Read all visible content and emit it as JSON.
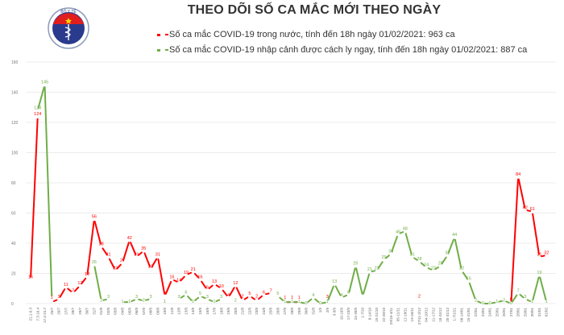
{
  "header": {
    "title": "THEO DÕI SỐ CA MẮC MỚI THEO NGÀY",
    "logo_text": "BỘ Y TẾ",
    "logo_subtext": "MINISTRY OF HEALTH"
  },
  "legend": [
    {
      "label": "Số ca mắc COVID-19 trong nước, tính đến 18h ngày 01/02/2021: 963 ca",
      "color": "#ff0000"
    },
    {
      "label": "Số ca mắc COVID-19 nhập cảnh được cách ly ngay, tính đến 18h ngày 01/02/2021: 887 ca",
      "color": "#70ad47"
    }
  ],
  "chart_data": {
    "type": "line",
    "title": "THEO DÕI SỐ CA MẮC MỚI THEO NGÀY",
    "xlabel": "",
    "ylabel": "",
    "ylim": [
      0,
      160
    ],
    "yticks": [
      0,
      20,
      40,
      60,
      80,
      100,
      120,
      140,
      160
    ],
    "grid": true,
    "legend_position": "top",
    "categories": [
      "21.1-6.3",
      "7.3-16.4",
      "17.4-24.7",
      "25/7",
      "26/7",
      "27/7",
      "28/7",
      "29/7",
      "30/7",
      "31/7",
      "01/8",
      "02/8",
      "03/8",
      "04/8",
      "05/8",
      "06/8",
      "07/8",
      "08/8",
      "09/8",
      "10/8",
      "11/8",
      "12/8",
      "13/8",
      "14/8",
      "15/8",
      "16/8",
      "17/8",
      "18/8",
      "19/8",
      "20/8",
      "21/8",
      "22/8",
      "23/8",
      "24/8",
      "25/8",
      "26/8",
      "27/8",
      "28/8",
      "29/8",
      "30/8",
      "31/8",
      "1/9",
      "2/9",
      "3-9/9",
      "10-16/9",
      "17-23/9",
      "24-30/9",
      "1-7/10",
      "8-14/10",
      "15-21/10",
      "22-28/10",
      "29/10-4/11",
      "05-11/11",
      "12-18/11",
      "19-26/11",
      "27/11-3/12",
      "04-10/12",
      "11-17/12",
      "18-24/12",
      "25-31/12",
      "1-7/1/21",
      "08-14/01",
      "15-21/01",
      "22/01",
      "23/01",
      "24/01",
      "25/01",
      "26/01",
      "27/01",
      "28/01",
      "29/01",
      "30/01",
      "31/01",
      "01/02"
    ],
    "series": [
      {
        "name": "Số ca mắc COVID-19 trong nước",
        "color": "#ff0000",
        "values": [
          16,
          124,
          null,
          1,
          3,
          11,
          7,
          12,
          18,
          56,
          38,
          31,
          22,
          27,
          42,
          31,
          35,
          23,
          31,
          5,
          16,
          14,
          19,
          21,
          16,
          9,
          13,
          10,
          4,
          12,
          2,
          5,
          2,
          6,
          7,
          null,
          1,
          1,
          1,
          null,
          null,
          null,
          3,
          null,
          null,
          null,
          null,
          null,
          null,
          null,
          null,
          null,
          null,
          null,
          null,
          2,
          null,
          null,
          null,
          null,
          null,
          null,
          null,
          null,
          null,
          null,
          null,
          null,
          0,
          84,
          62,
          61,
          31,
          32
        ]
      },
      {
        "name": "Số ca mắc COVID-19 nhập cảnh được cách ly ngay",
        "color": "#70ad47",
        "values": [
          null,
          128,
          145,
          4,
          null,
          null,
          null,
          null,
          null,
          26,
          2,
          3,
          null,
          1,
          1,
          3,
          2,
          3,
          null,
          1,
          null,
          3,
          6,
          1,
          5,
          3,
          1,
          3,
          null,
          2,
          null,
          null,
          null,
          null,
          null,
          5,
          1,
          1,
          1,
          0,
          4,
          0,
          1,
          13,
          4,
          6,
          25,
          5,
          21,
          22,
          29,
          33,
          46,
          48,
          31,
          28,
          24,
          22,
          25,
          32,
          44,
          22,
          15,
          2,
          0,
          0,
          1,
          2,
          0,
          7,
          3,
          1,
          19,
          1
        ]
      }
    ]
  }
}
